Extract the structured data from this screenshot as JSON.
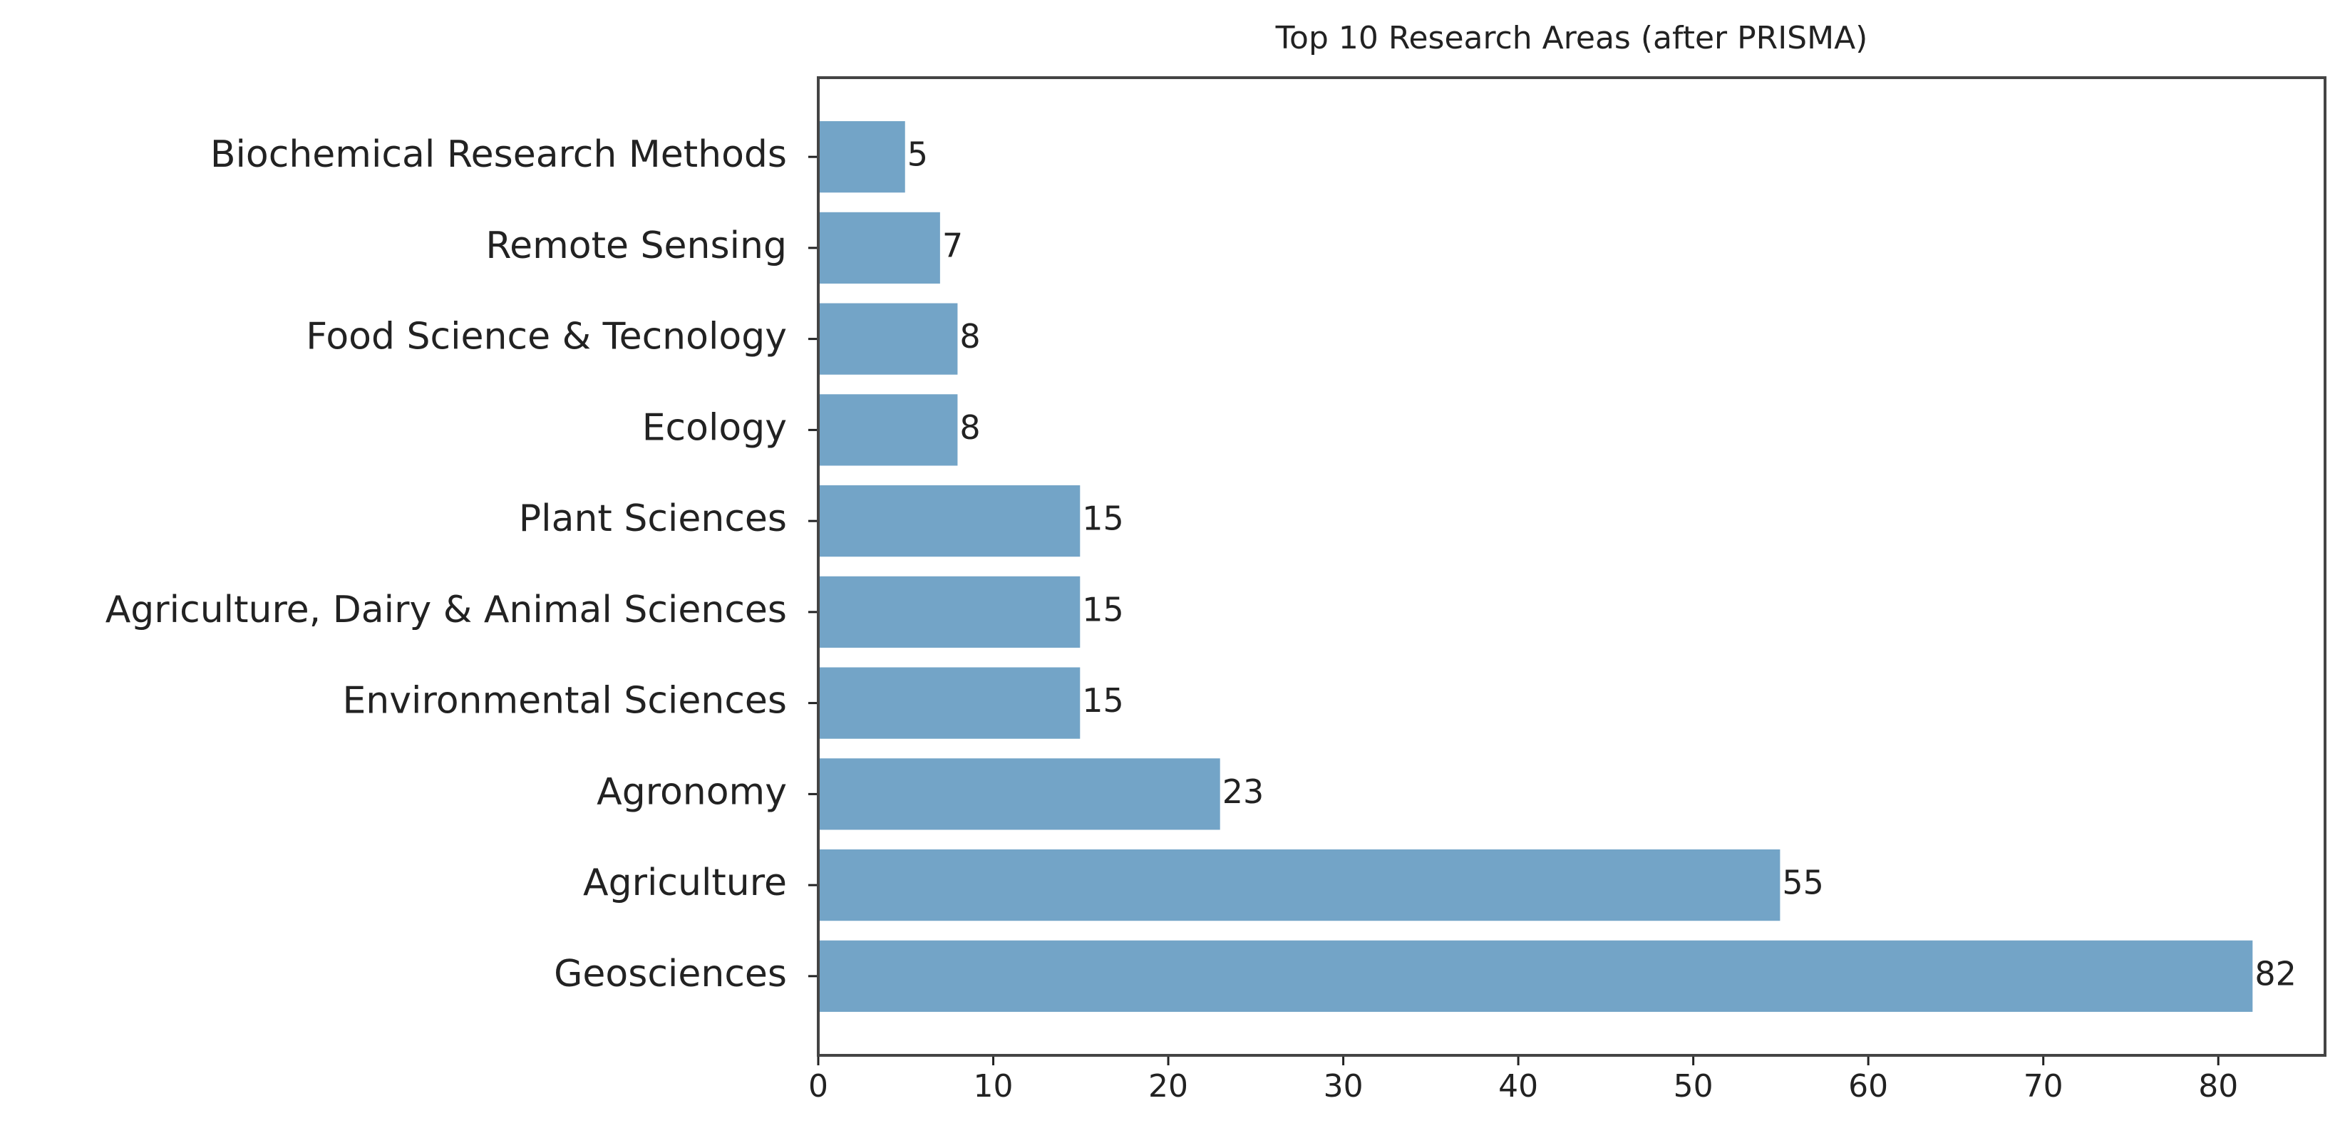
{
  "chart_data": {
    "type": "barh",
    "title": "Top 10 Research Areas (after PRISMA)",
    "categories": [
      "Biochemical Research Methods",
      "Remote Sensing",
      "Food Science & Tecnology",
      "Ecology",
      "Plant Sciences",
      "Agriculture, Dairy & Animal Sciences",
      "Environmental Sciences",
      "Agronomy",
      "Agriculture",
      "Geosciences"
    ],
    "values": [
      5,
      7,
      8,
      8,
      15,
      15,
      15,
      23,
      55,
      82
    ],
    "color": "#73a4c7",
    "xlim": [
      0,
      86.1
    ],
    "xticks": [
      0,
      10,
      20,
      30,
      40,
      50,
      60,
      70,
      80
    ]
  }
}
